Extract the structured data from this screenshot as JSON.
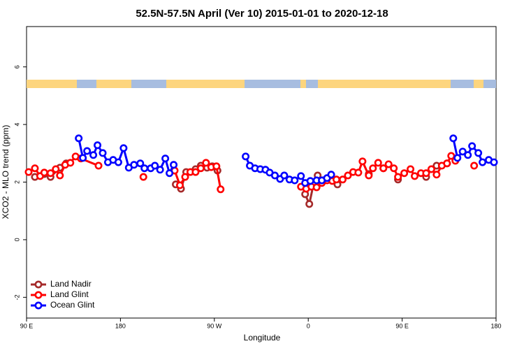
{
  "chart_data": {
    "type": "line",
    "title": "52.5N-57.5N April (Ver 10)   2015-01-01 to 2020-12-18",
    "x_label": "Longitude",
    "y_label": "XCO2 - MLO trend (ppm)",
    "xlim": [
      -270,
      180
    ],
    "ylim": [
      -2.72,
      7.4
    ],
    "xticks": [
      {
        "value": -270,
        "label": "90 E"
      },
      {
        "value": -180,
        "label": "180"
      },
      {
        "value": -90,
        "label": "90 W"
      },
      0,
      {
        "value": 90,
        "label": "90 E"
      },
      180
    ],
    "yticks": [
      -2,
      0,
      2,
      4,
      6
    ],
    "legend": "bottom-left",
    "series": [
      {
        "name": "Land Nadir",
        "color": "#a52a2a",
        "x": [
          -262,
          -253,
          -247,
          -238,
          -232,
          -180,
          -127,
          -122,
          -117,
          -108,
          -103,
          -97,
          -92,
          -87,
          -45,
          -3,
          1,
          5,
          9,
          14,
          20,
          28,
          43,
          58,
          65,
          72,
          79,
          86,
          100,
          113,
          118,
          123,
          133
        ],
        "values": [
          2.18,
          2.28,
          2.18,
          2.5,
          2.65,
          null,
          1.92,
          1.77,
          2.35,
          2.45,
          2.57,
          2.5,
          2.55,
          2.4,
          null,
          1.58,
          1.24,
          1.92,
          2.23,
          2.06,
          null,
          1.92,
          null,
          2.28,
          null,
          2.48,
          null,
          2.09,
          null,
          2.18,
          null,
          2.57,
          2.65
        ]
      },
      {
        "name": "Land Glint",
        "color": "#ff0000",
        "x": [
          -268,
          -262,
          -257,
          -253,
          -247,
          -242,
          -238,
          -233,
          -228,
          -223,
          -218,
          -201,
          -180,
          -158,
          -140,
          -128,
          -123,
          -118,
          -113,
          -108,
          -103,
          -98,
          -93,
          -88,
          -84,
          -40,
          -7,
          -2,
          3,
          8,
          13,
          18,
          23,
          27,
          33,
          38,
          43,
          48,
          52,
          58,
          62,
          67,
          72,
          77,
          82,
          86,
          92,
          98,
          102,
          108,
          113,
          118,
          123,
          128,
          133,
          137,
          141,
          150,
          159
        ],
        "values": [
          2.35,
          2.48,
          2.21,
          2.33,
          2.31,
          2.45,
          2.23,
          2.6,
          2.67,
          2.89,
          2.82,
          2.57,
          null,
          2.18,
          null,
          2.4,
          1.89,
          2.18,
          2.35,
          2.35,
          2.48,
          2.67,
          2.52,
          2.55,
          1.75,
          null,
          1.84,
          1.77,
          1.84,
          1.82,
          1.97,
          2.06,
          2.04,
          2.09,
          2.09,
          2.23,
          2.35,
          2.33,
          2.72,
          2.23,
          2.48,
          2.67,
          2.48,
          2.62,
          2.48,
          2.18,
          2.31,
          2.45,
          2.21,
          2.31,
          2.31,
          2.45,
          2.26,
          2.57,
          2.65,
          2.91,
          2.74,
          null,
          2.57
        ]
      },
      {
        "name": "Ocean Glint",
        "color": "#0000ff",
        "x": [
          -220,
          -216,
          -212,
          -206,
          -202,
          -197,
          -192,
          -187,
          -182,
          -177,
          -172,
          -167,
          -161,
          -157,
          -151,
          -147,
          -142,
          -137,
          -133,
          -129,
          -95,
          -60,
          -56,
          -51,
          -46,
          -41,
          -37,
          -32,
          -27,
          -23,
          -18,
          -13,
          -7,
          -3,
          2,
          8,
          13,
          18,
          22,
          80,
          139,
          143,
          148,
          153,
          157,
          163,
          167,
          173,
          178
        ],
        "values": [
          3.52,
          2.84,
          3.08,
          2.94,
          3.28,
          3.01,
          2.69,
          2.77,
          2.69,
          3.18,
          2.5,
          2.6,
          2.65,
          2.48,
          2.48,
          2.57,
          2.43,
          2.82,
          2.31,
          2.6,
          null,
          2.89,
          2.57,
          2.48,
          2.45,
          2.43,
          2.33,
          2.23,
          2.11,
          2.23,
          2.09,
          2.06,
          2.21,
          1.97,
          2.04,
          2.06,
          2.06,
          2.14,
          2.26,
          null,
          3.52,
          2.84,
          3.06,
          2.94,
          3.25,
          3.01,
          2.69,
          2.77,
          2.69
        ]
      }
    ]
  }
}
